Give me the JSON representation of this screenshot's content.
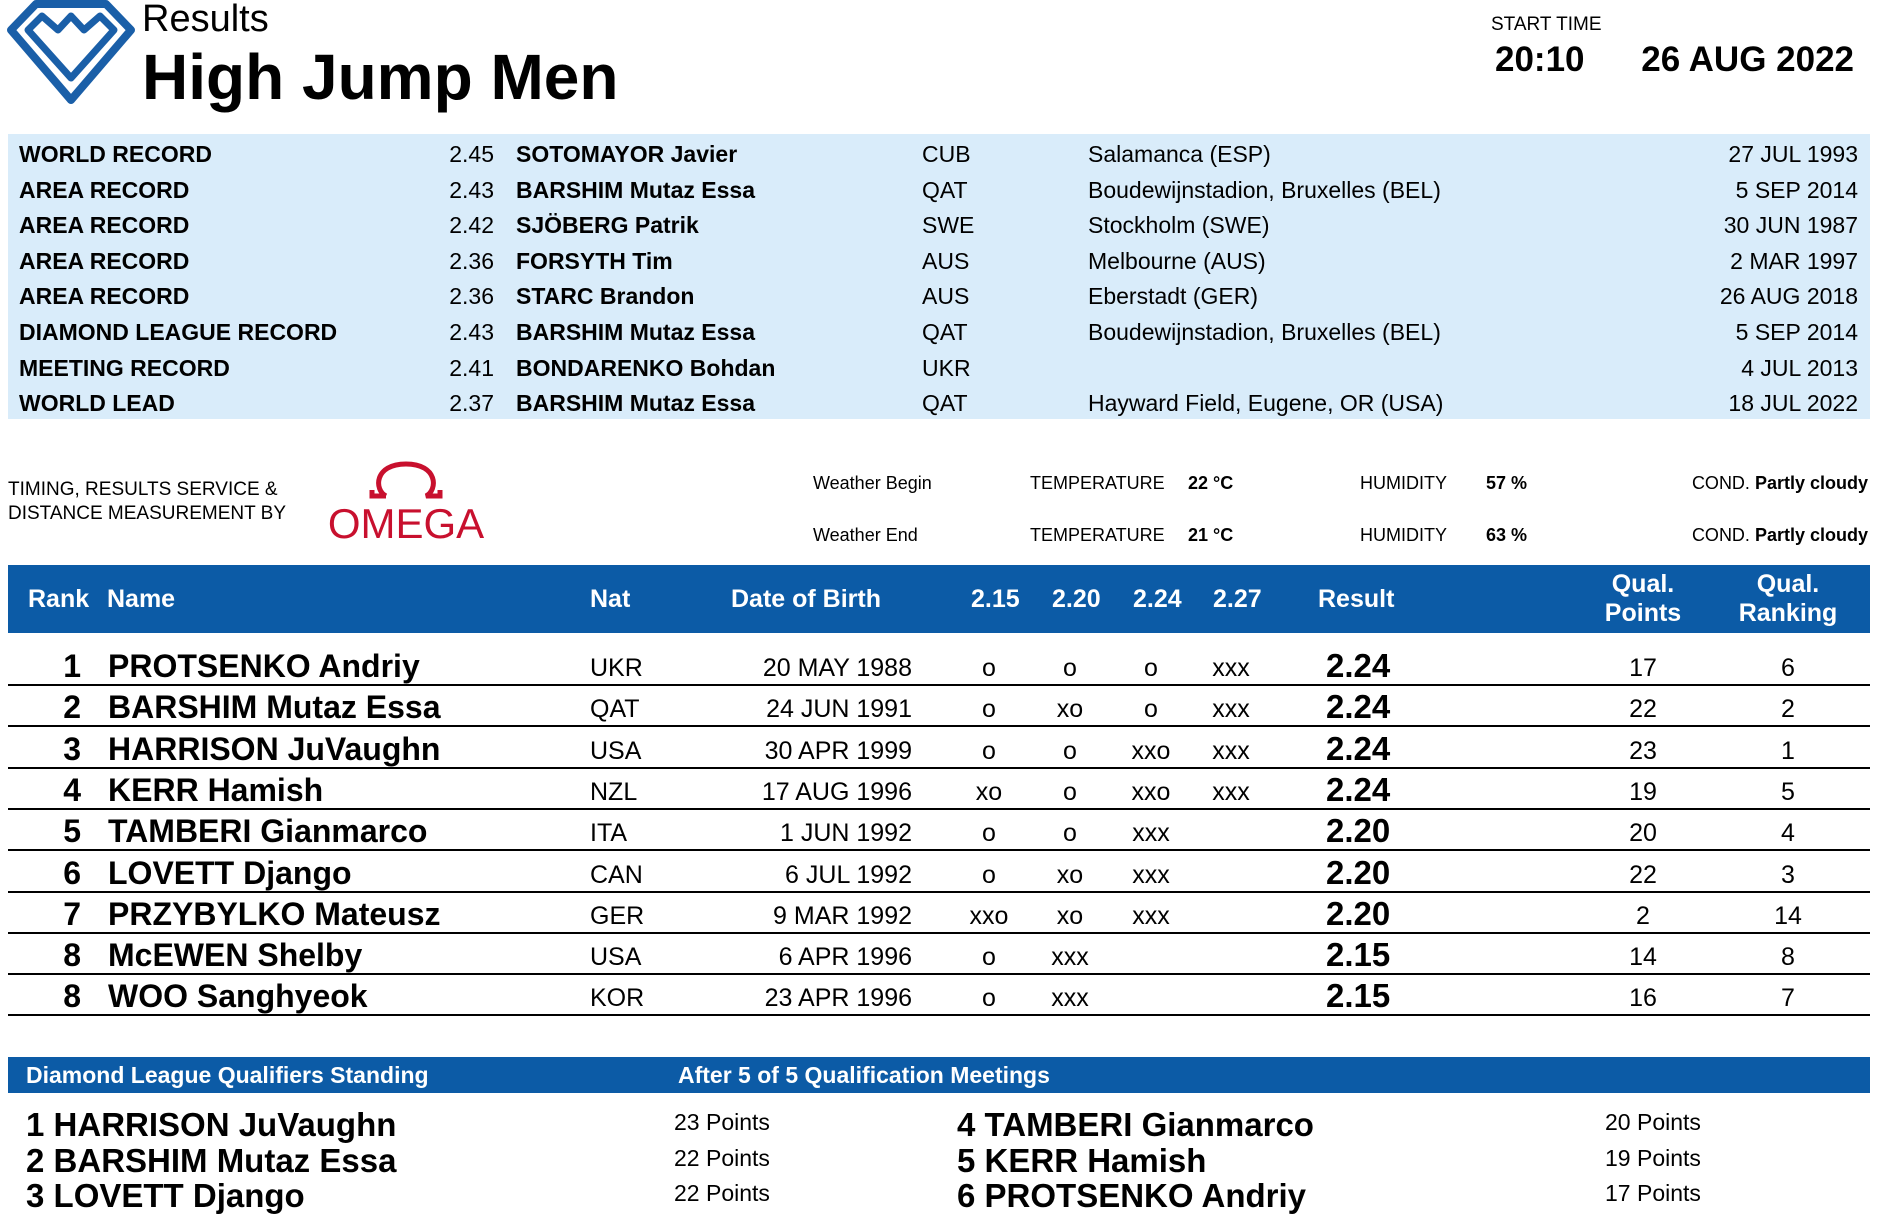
{
  "header": {
    "results_label": "Results",
    "event_title": "High Jump Men",
    "start_time_label": "START TIME",
    "start_time": "20:10",
    "date": "26 AUG 2022"
  },
  "records": [
    {
      "type": "WORLD RECORD",
      "mark": "2.45",
      "athlete": "SOTOMAYOR Javier",
      "nat": "CUB",
      "venue": "Salamanca (ESP)",
      "date": "27 JUL 1993"
    },
    {
      "type": "AREA RECORD",
      "mark": "2.43",
      "athlete": "BARSHIM Mutaz Essa",
      "nat": "QAT",
      "venue": "Boudewijnstadion, Bruxelles (BEL)",
      "date": "5 SEP 2014"
    },
    {
      "type": "AREA RECORD",
      "mark": "2.42",
      "athlete": "SJÖBERG Patrik",
      "nat": "SWE",
      "venue": "Stockholm (SWE)",
      "date": "30 JUN 1987"
    },
    {
      "type": "AREA RECORD",
      "mark": "2.36",
      "athlete": "FORSYTH Tim",
      "nat": "AUS",
      "venue": "Melbourne (AUS)",
      "date": "2 MAR 1997"
    },
    {
      "type": "AREA RECORD",
      "mark": "2.36",
      "athlete": "STARC Brandon",
      "nat": "AUS",
      "venue": "Eberstadt (GER)",
      "date": "26 AUG 2018"
    },
    {
      "type": "DIAMOND LEAGUE RECORD",
      "mark": "2.43",
      "athlete": "BARSHIM Mutaz Essa",
      "nat": "QAT",
      "venue": "Boudewijnstadion, Bruxelles (BEL)",
      "date": "5 SEP 2014"
    },
    {
      "type": "MEETING RECORD",
      "mark": "2.41",
      "athlete": "BONDARENKO Bohdan",
      "nat": "UKR",
      "venue": "",
      "date": "4 JUL 2013"
    },
    {
      "type": "WORLD LEAD",
      "mark": "2.37",
      "athlete": "BARSHIM Mutaz Essa",
      "nat": "QAT",
      "venue": "Hayward Field, Eugene, OR (USA)",
      "date": "18 JUL 2022"
    }
  ],
  "timing": {
    "line1": "TIMING, RESULTS SERVICE &",
    "line2": "DISTANCE MEASUREMENT BY",
    "omega": "OMEGA"
  },
  "weather": {
    "begin": {
      "label": "Weather Begin",
      "temp_label": "TEMPERATURE",
      "temp": "22 °C",
      "hum_label": "HUMIDITY",
      "hum": "57 %",
      "cond_label": "COND.",
      "cond": "Partly cloudy"
    },
    "end": {
      "label": "Weather End",
      "temp_label": "TEMPERATURE",
      "temp": "21 °C",
      "hum_label": "HUMIDITY",
      "hum": "63 %",
      "cond_label": "COND.",
      "cond": "Partly cloudy"
    }
  },
  "table": {
    "headers": {
      "rank": "Rank",
      "name": "Name",
      "nat": "Nat",
      "dob": "Date of Birth",
      "h1": "2.15",
      "h2": "2.20",
      "h3": "2.24",
      "h4": "2.27",
      "result": "Result",
      "qp1": "Qual.",
      "qp2": "Points",
      "qr1": "Qual.",
      "qr2": "Ranking"
    },
    "rows": [
      {
        "rank": "1",
        "name": "PROTSENKO Andriy",
        "nat": "UKR",
        "dob": "20 MAY 1988",
        "a1": "o",
        "a2": "o",
        "a3": "o",
        "a4": "xxx",
        "result": "2.24",
        "qp": "17",
        "qr": "6"
      },
      {
        "rank": "2",
        "name": "BARSHIM Mutaz Essa",
        "nat": "QAT",
        "dob": "24 JUN 1991",
        "a1": "o",
        "a2": "xo",
        "a3": "o",
        "a4": "xxx",
        "result": "2.24",
        "qp": "22",
        "qr": "2"
      },
      {
        "rank": "3",
        "name": "HARRISON JuVaughn",
        "nat": "USA",
        "dob": "30 APR 1999",
        "a1": "o",
        "a2": "o",
        "a3": "xxo",
        "a4": "xxx",
        "result": "2.24",
        "qp": "23",
        "qr": "1"
      },
      {
        "rank": "4",
        "name": "KERR Hamish",
        "nat": "NZL",
        "dob": "17 AUG 1996",
        "a1": "xo",
        "a2": "o",
        "a3": "xxo",
        "a4": "xxx",
        "result": "2.24",
        "qp": "19",
        "qr": "5"
      },
      {
        "rank": "5",
        "name": "TAMBERI Gianmarco",
        "nat": "ITA",
        "dob": "1 JUN 1992",
        "a1": "o",
        "a2": "o",
        "a3": "xxx",
        "a4": "",
        "result": "2.20",
        "qp": "20",
        "qr": "4"
      },
      {
        "rank": "6",
        "name": "LOVETT Django",
        "nat": "CAN",
        "dob": "6 JUL 1992",
        "a1": "o",
        "a2": "xo",
        "a3": "xxx",
        "a4": "",
        "result": "2.20",
        "qp": "22",
        "qr": "3"
      },
      {
        "rank": "7",
        "name": "PRZYBYLKO Mateusz",
        "nat": "GER",
        "dob": "9 MAR 1992",
        "a1": "xxo",
        "a2": "xo",
        "a3": "xxx",
        "a4": "",
        "result": "2.20",
        "qp": "2",
        "qr": "14"
      },
      {
        "rank": "8",
        "name": "McEWEN Shelby",
        "nat": "USA",
        "dob": "6 APR 1996",
        "a1": "o",
        "a2": "xxx",
        "a3": "",
        "a4": "",
        "result": "2.15",
        "qp": "14",
        "qr": "8"
      },
      {
        "rank": "8",
        "name": "WOO Sanghyeok",
        "nat": "KOR",
        "dob": "23 APR 1996",
        "a1": "o",
        "a2": "xxx",
        "a3": "",
        "a4": "",
        "result": "2.15",
        "qp": "16",
        "qr": "7"
      }
    ]
  },
  "standings": {
    "title": "Diamond League Qualifiers Standing",
    "subtitle": "After 5 of 5 Qualification Meetings",
    "left": [
      {
        "pos": "1",
        "name": "HARRISON JuVaughn",
        "points": "23 Points"
      },
      {
        "pos": "2",
        "name": "BARSHIM Mutaz Essa",
        "points": "22 Points"
      },
      {
        "pos": "3",
        "name": "LOVETT Django",
        "points": "22 Points"
      }
    ],
    "right": [
      {
        "pos": "4",
        "name": "TAMBERI Gianmarco",
        "points": "20 Points"
      },
      {
        "pos": "5",
        "name": "KERR Hamish",
        "points": "19 Points"
      },
      {
        "pos": "6",
        "name": "PROTSENKO Andriy",
        "points": "17 Points"
      }
    ]
  },
  "colors": {
    "accent": "#0c5ba6",
    "record_bg": "#d9ecfa",
    "omega_red": "#c8102e",
    "logo_blue": "#1a5fa8"
  }
}
